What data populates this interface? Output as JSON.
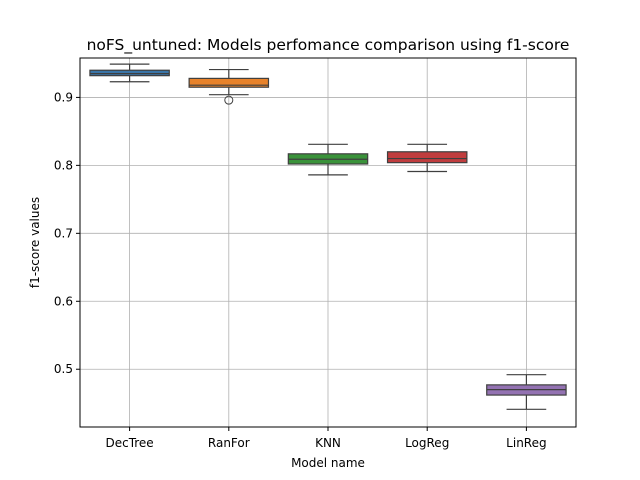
{
  "chart_data": {
    "type": "box",
    "title": "noFS_untuned: Models perfomance comparison using f1-score",
    "xlabel": "Model name",
    "ylabel": "f1-score values",
    "ylim": [
      0.415,
      0.958
    ],
    "yticks": [
      0.5,
      0.6,
      0.7,
      0.8,
      0.9
    ],
    "ytick_labels": [
      "0.5",
      "0.6",
      "0.7",
      "0.8",
      "0.9"
    ],
    "grid": true,
    "categories": [
      "DecTree",
      "RanFor",
      "KNN",
      "LogReg",
      "LinReg"
    ],
    "boxes": [
      {
        "name": "DecTree",
        "whisker_low": 0.923,
        "q1": 0.932,
        "median": 0.935,
        "q3": 0.94,
        "whisker_high": 0.949,
        "outliers": [],
        "color": "#3a75a8"
      },
      {
        "name": "RanFor",
        "whisker_low": 0.904,
        "q1": 0.915,
        "median": 0.918,
        "q3": 0.928,
        "whisker_high": 0.941,
        "outliers": [
          0.896
        ],
        "color": "#e8822a"
      },
      {
        "name": "KNN",
        "whisker_low": 0.786,
        "q1": 0.802,
        "median": 0.809,
        "q3": 0.817,
        "whisker_high": 0.831,
        "outliers": [],
        "color": "#3a923a"
      },
      {
        "name": "LogReg",
        "whisker_low": 0.791,
        "q1": 0.804,
        "median": 0.81,
        "q3": 0.82,
        "whisker_high": 0.831,
        "outliers": [],
        "color": "#c03d3e"
      },
      {
        "name": "LinReg",
        "whisker_low": 0.441,
        "q1": 0.462,
        "median": 0.47,
        "q3": 0.477,
        "whisker_high": 0.492,
        "outliers": [],
        "color": "#9372b2"
      }
    ]
  }
}
